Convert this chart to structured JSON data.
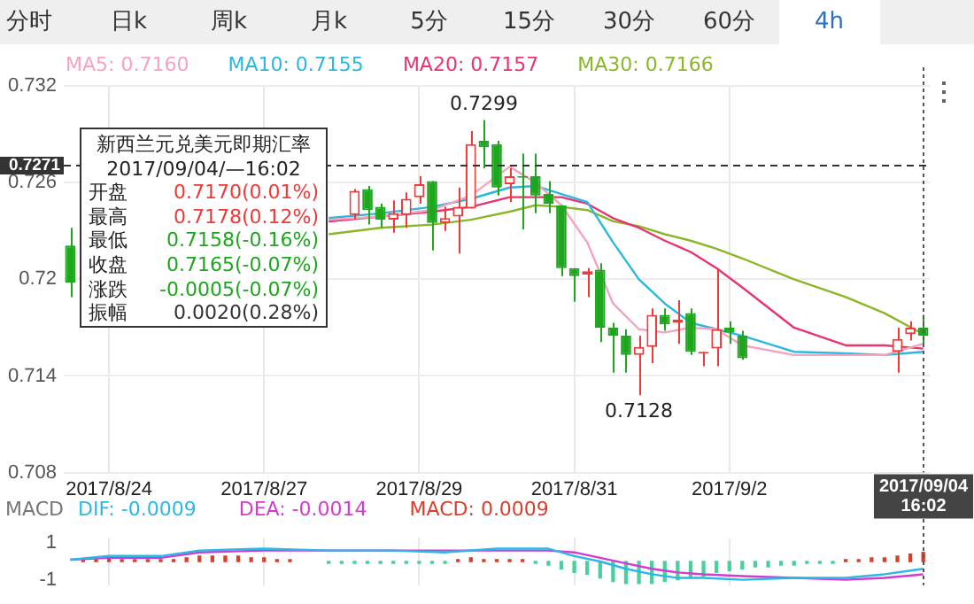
{
  "chart_data": [
    {
      "type": "other",
      "categories": [
        "分时",
        "日k",
        "周k",
        "月k",
        "5分",
        "15分",
        "30分",
        "60分",
        "4h"
      ]
    },
    {
      "type": "candlestick",
      "legend": "top left",
      "grid": true,
      "marker": "none",
      "categories": [
        null,
        null,
        null,
        "2017/8/24",
        null,
        null,
        null,
        null,
        null,
        null,
        null,
        null,
        null,
        null,
        null,
        "2017/8/27",
        null,
        null,
        null,
        null,
        null,
        null,
        null,
        null,
        null,
        null,
        null,
        "2017/8/29",
        null,
        null,
        null,
        null,
        null,
        null,
        null,
        null,
        null,
        null,
        null,
        "2017/8/31",
        null,
        null,
        null,
        null,
        null,
        null,
        null,
        null,
        null,
        null,
        null,
        "2017/9/2",
        null,
        null,
        null,
        null,
        null,
        null,
        null,
        null,
        null,
        null,
        null,
        null,
        null,
        null,
        "2017/09/04 16:02"
      ],
      "ohlc": [
        [
          0.7221,
          0.7232,
          0.7189,
          0.7198
        ],
        null,
        null,
        null,
        null,
        null,
        null,
        null,
        null,
        null,
        null,
        null,
        null,
        null,
        null,
        null,
        null,
        null,
        null,
        null,
        null,
        null,
        [
          0.724,
          0.7256,
          0.7237,
          0.7255
        ],
        [
          0.7256,
          0.7258,
          0.7234,
          0.7243
        ],
        [
          0.7245,
          0.7247,
          0.7232,
          0.7237
        ],
        [
          0.7237,
          0.7249,
          0.7229,
          0.7241
        ],
        [
          0.724,
          0.7254,
          0.7232,
          0.725
        ],
        [
          0.7251,
          0.7264,
          0.7247,
          0.7259
        ],
        [
          0.7261,
          0.7261,
          0.7218,
          0.7235
        ],
        [
          0.7235,
          0.7245,
          0.723,
          0.7238
        ],
        [
          0.7239,
          0.7257,
          0.7216,
          0.7245
        ],
        [
          0.7244,
          0.7292,
          0.7244,
          0.7284
        ],
        [
          0.7286,
          0.7299,
          0.7269,
          0.7282
        ],
        [
          0.7284,
          0.7286,
          0.7252,
          0.7257
        ],
        [
          0.7259,
          0.7269,
          0.7248,
          0.7264
        ],
        [
          0.7264,
          0.7278,
          0.7231,
          0.7263
        ],
        [
          0.7264,
          0.7278,
          0.7241,
          0.7252
        ],
        [
          0.7253,
          0.7261,
          0.7241,
          0.7247
        ],
        [
          0.7246,
          0.7246,
          0.7202,
          0.7207
        ],
        [
          0.7207,
          0.7207,
          0.7186,
          0.7202
        ],
        [
          0.7203,
          0.7207,
          0.7189,
          0.7205
        ],
        [
          0.7206,
          0.721,
          0.7161,
          0.717
        ],
        [
          0.717,
          0.7173,
          0.7142,
          0.7165
        ],
        [
          0.7165,
          0.7169,
          0.7142,
          0.7153
        ],
        [
          0.7153,
          0.7165,
          0.7128,
          0.7158
        ],
        [
          0.7158,
          0.7182,
          0.7148,
          0.7178
        ],
        [
          0.7178,
          0.7182,
          0.7168,
          0.7172
        ],
        [
          0.7173,
          0.7187,
          0.716,
          0.7175
        ],
        [
          0.7179,
          0.7182,
          0.7153,
          0.7155
        ],
        [
          0.7154,
          0.7155,
          0.7146,
          0.7155
        ],
        [
          0.7157,
          0.7207,
          0.7146,
          0.7169
        ],
        [
          0.717,
          0.7174,
          0.716,
          0.7167
        ],
        [
          0.7165,
          0.7168,
          0.715,
          0.7151
        ],
        null,
        null,
        null,
        null,
        null,
        null,
        null,
        null,
        null,
        null,
        null,
        [
          0.7155,
          0.717,
          0.7142,
          0.7163
        ],
        [
          0.7166,
          0.7174,
          0.7162,
          0.717
        ],
        [
          0.717,
          0.7178,
          0.7158,
          0.7165
        ]
      ],
      "series": [
        {
          "name": "MA5: 0.7160",
          "type": "line",
          "color": "#f5a3c0",
          "values": [
            null,
            null,
            null,
            null,
            null,
            null,
            null,
            null,
            null,
            null,
            null,
            null,
            null,
            null,
            null,
            null,
            null,
            null,
            null,
            null,
            0.7237,
            null,
            null,
            null,
            0.7239,
            null,
            null,
            null,
            0.7243,
            null,
            null,
            0.7252,
            null,
            null,
            0.727,
            null,
            0.726,
            null,
            0.7246,
            null,
            0.7223,
            null,
            0.7185,
            null,
            0.7169,
            null,
            0.7167,
            null,
            0.717,
            null,
            0.7169,
            null,
            0.7159,
            null,
            null,
            null,
            0.7153,
            null,
            null,
            null,
            0.7153,
            null,
            null,
            0.7153,
            null,
            null,
            0.716
          ]
        },
        {
          "name": "MA10: 0.7155",
          "type": "line",
          "color": "#2bb8de",
          "values": [
            null,
            null,
            null,
            null,
            null,
            null,
            null,
            null,
            null,
            null,
            null,
            null,
            null,
            null,
            null,
            null,
            null,
            null,
            null,
            null,
            0.7238,
            null,
            null,
            null,
            0.7241,
            null,
            null,
            null,
            0.7245,
            null,
            null,
            0.725,
            null,
            null,
            0.7257,
            null,
            0.7258,
            null,
            0.7253,
            null,
            0.7248,
            null,
            0.7223,
            null,
            0.72,
            null,
            0.7185,
            null,
            0.7173,
            null,
            0.7169,
            null,
            0.7165,
            null,
            null,
            null,
            0.7155,
            null,
            null,
            null,
            0.7154,
            null,
            null,
            0.7153,
            null,
            null,
            0.7155
          ]
        },
        {
          "name": "MA20: 0.7157",
          "type": "line",
          "color": "#e8356e",
          "values": [
            null,
            null,
            null,
            null,
            null,
            null,
            null,
            null,
            null,
            null,
            null,
            null,
            null,
            null,
            null,
            null,
            null,
            null,
            null,
            null,
            0.7236,
            null,
            null,
            null,
            0.7239,
            null,
            null,
            null,
            0.7242,
            null,
            null,
            0.7245,
            null,
            null,
            0.7251,
            null,
            0.7251,
            null,
            0.7251,
            null,
            0.7247,
            null,
            0.7238,
            null,
            0.7232,
            null,
            0.7224,
            null,
            0.7217,
            null,
            0.7207,
            null,
            0.7195,
            null,
            null,
            null,
            0.717,
            null,
            null,
            null,
            0.7159,
            null,
            null,
            0.7159,
            null,
            null,
            0.7157
          ]
        },
        {
          "name": "MA30: 0.7166",
          "type": "line",
          "color": "#8cb62a",
          "values": [
            null,
            null,
            null,
            null,
            null,
            null,
            null,
            null,
            null,
            null,
            null,
            null,
            null,
            null,
            null,
            null,
            null,
            null,
            null,
            null,
            0.7228,
            null,
            null,
            null,
            0.7232,
            null,
            null,
            null,
            0.7234,
            null,
            null,
            0.7237,
            null,
            null,
            0.7242,
            null,
            0.7246,
            null,
            0.7245,
            null,
            0.7243,
            null,
            0.7236,
            null,
            0.7233,
            null,
            0.7228,
            null,
            0.7224,
            null,
            0.7219,
            null,
            0.7213,
            null,
            null,
            null,
            0.72,
            null,
            null,
            null,
            0.7189,
            null,
            null,
            0.7179,
            null,
            null,
            0.7166
          ]
        }
      ],
      "ylim": [
        0.708,
        0.732
      ],
      "yticks": [
        0.708,
        0.714,
        0.72,
        0.726,
        0.732
      ],
      "ref_lines": [
        {
          "axis": "y",
          "value": 0.7271,
          "label": "0.7271",
          "line_style": "dashed",
          "color": "#333333"
        },
        {
          "axis": "x",
          "value": "2017/09/04 16:02",
          "line_style": "dotted",
          "color": "#555555"
        }
      ],
      "annotations": [
        {
          "text": "0.7299",
          "y": 0.7299
        },
        {
          "text": "0.7128",
          "y": 0.7128
        }
      ]
    },
    {
      "type": "other",
      "title": "新西兰元兑美元即期汇率",
      "subtitle": "2017/09/04/—16:02",
      "categories": [
        "开盘",
        "最高",
        "最低",
        "收盘",
        "涨跌",
        "振幅"
      ],
      "value_labels": [
        "0.7170(0.01%)",
        "0.7178(0.12%)",
        "0.7158(-0.16%)",
        "0.7165(-0.07%)",
        "-0.0005(-0.07%)",
        "0.0020(0.28%)"
      ],
      "colors": [
        "#f03a3a",
        "#f03a3a",
        "#1fa61f",
        "#1fa61f",
        "#1fa61f",
        "#333333"
      ]
    },
    {
      "type": "line",
      "title": "MACD",
      "legend": "top left",
      "grid": "x",
      "marker": "none",
      "tick_labels": "y",
      "categories": [
        null,
        null,
        null,
        "2017/8/24",
        null,
        null,
        null,
        null,
        null,
        null,
        null,
        null,
        null,
        null,
        null,
        "2017/8/27",
        null,
        null,
        null,
        null,
        null,
        null,
        null,
        null,
        null,
        null,
        null,
        "2017/8/29",
        null,
        null,
        null,
        null,
        null,
        null,
        null,
        null,
        null,
        null,
        null,
        "2017/8/31",
        null,
        null,
        null,
        null,
        null,
        null,
        null,
        null,
        null,
        null,
        null,
        "2017/9/2",
        null,
        null,
        null,
        null,
        null,
        null,
        null,
        null,
        null,
        null,
        null,
        null,
        null,
        null,
        "2017/09/04 16:02"
      ],
      "series": [
        {
          "name": "DIF: -0.0009",
          "type": "line",
          "color": "#29b8e8",
          "values": [
            0.1,
            null,
            null,
            0.3,
            null,
            null,
            null,
            0.3,
            null,
            null,
            0.6,
            null,
            null,
            null,
            null,
            0.7,
            null,
            null,
            null,
            null,
            0.6,
            null,
            null,
            null,
            null,
            0.6,
            null,
            null,
            null,
            0.5,
            null,
            null,
            null,
            0.7,
            null,
            null,
            null,
            0.7,
            null,
            0.3,
            null,
            0,
            null,
            -0.4,
            null,
            -0.7,
            null,
            -0.9,
            null,
            -0.9,
            null,
            null,
            -1,
            null,
            null,
            null,
            -0.9,
            null,
            null,
            null,
            -0.9,
            null,
            null,
            -0.7,
            null,
            null,
            -0.4
          ]
        },
        {
          "name": "DEA: -0.0014",
          "type": "line",
          "color": "#d43ad0",
          "values": [
            0.1,
            null,
            null,
            0.2,
            null,
            null,
            null,
            0.2,
            null,
            null,
            0.5,
            null,
            null,
            null,
            null,
            0.6,
            null,
            null,
            null,
            null,
            0.6,
            null,
            null,
            null,
            null,
            null,
            null,
            null,
            null,
            0.6,
            null,
            null,
            null,
            0.6,
            null,
            null,
            null,
            0.6,
            null,
            0.5,
            null,
            0.2,
            null,
            -0.1,
            null,
            -0.4,
            null,
            -0.6,
            null,
            -0.7,
            null,
            null,
            -0.8,
            null,
            null,
            null,
            -0.9,
            null,
            null,
            null,
            -1,
            null,
            null,
            -0.9,
            null,
            null,
            -0.7
          ]
        },
        {
          "name": "MACD: 0.0009",
          "type": "bar",
          "color": "#d9402b",
          "values": [
            null,
            0.1,
            0.1,
            0.2,
            0.1,
            0.1,
            0.1,
            0.1,
            0.1,
            0.2,
            0.3,
            0.3,
            0.3,
            0.3,
            0.2,
            0.2,
            0.1,
            0.1,
            null,
            null,
            -0.1,
            -0.1,
            -0.1,
            -0.1,
            -0.1,
            -0.1,
            -0.1,
            -0.1,
            -0.1,
            -0.1,
            0.1,
            0.2,
            0.1,
            0.1,
            0.1,
            0.1,
            -0.1,
            -0.2,
            -0.4,
            -0.6,
            -0.7,
            -0.9,
            -1.1,
            -1.2,
            -1.2,
            -1.2,
            -1.1,
            -1.0,
            -0.9,
            -0.8,
            -0.6,
            -0.5,
            -0.4,
            -0.3,
            -0.3,
            -0.2,
            -0.2,
            -0.1,
            -0.1,
            -0.1,
            0.1,
            0.1,
            0.2,
            0.2,
            0.3,
            0.4,
            0.5
          ],
          "colors": [
            "#d9402b",
            "#d9402b",
            "#d9402b",
            "#d9402b",
            "#d9402b",
            "#d9402b",
            "#d9402b",
            "#d9402b",
            "#d9402b",
            "#d9402b",
            "#d9402b",
            "#d9402b",
            "#d9402b",
            "#d9402b",
            "#d9402b",
            "#d9402b",
            "#d9402b",
            "#d9402b",
            "#d9402b",
            "#d9402b",
            "#4ccf9e",
            "#4ccf9e",
            "#4ccf9e",
            "#4ccf9e",
            "#4ccf9e",
            "#4ccf9e",
            "#4ccf9e",
            "#4ccf9e",
            "#4ccf9e",
            "#4ccf9e",
            "#d9402b",
            "#d9402b",
            "#d9402b",
            "#d9402b",
            "#d9402b",
            "#d9402b",
            "#4ccf9e",
            "#4ccf9e",
            "#4ccf9e",
            "#4ccf9e",
            "#4ccf9e",
            "#4ccf9e",
            "#4ccf9e",
            "#4ccf9e",
            "#4ccf9e",
            "#4ccf9e",
            "#4ccf9e",
            "#4ccf9e",
            "#4ccf9e",
            "#4ccf9e",
            "#4ccf9e",
            "#4ccf9e",
            "#4ccf9e",
            "#4ccf9e",
            "#4ccf9e",
            "#4ccf9e",
            "#4ccf9e",
            "#4ccf9e",
            "#4ccf9e",
            "#4ccf9e",
            "#d9402b",
            "#d9402b",
            "#d9402b",
            "#d9402b",
            "#d9402b",
            "#d9402b",
            "#d9402b"
          ]
        }
      ],
      "ylim": [
        -1.3,
        1.3
      ],
      "yticks": [
        1,
        -1
      ],
      "ref_lines": [
        {
          "axis": "x",
          "value": "2017/09/04 16:02",
          "line_style": "dotted",
          "color": "#555555"
        }
      ]
    }
  ]
}
